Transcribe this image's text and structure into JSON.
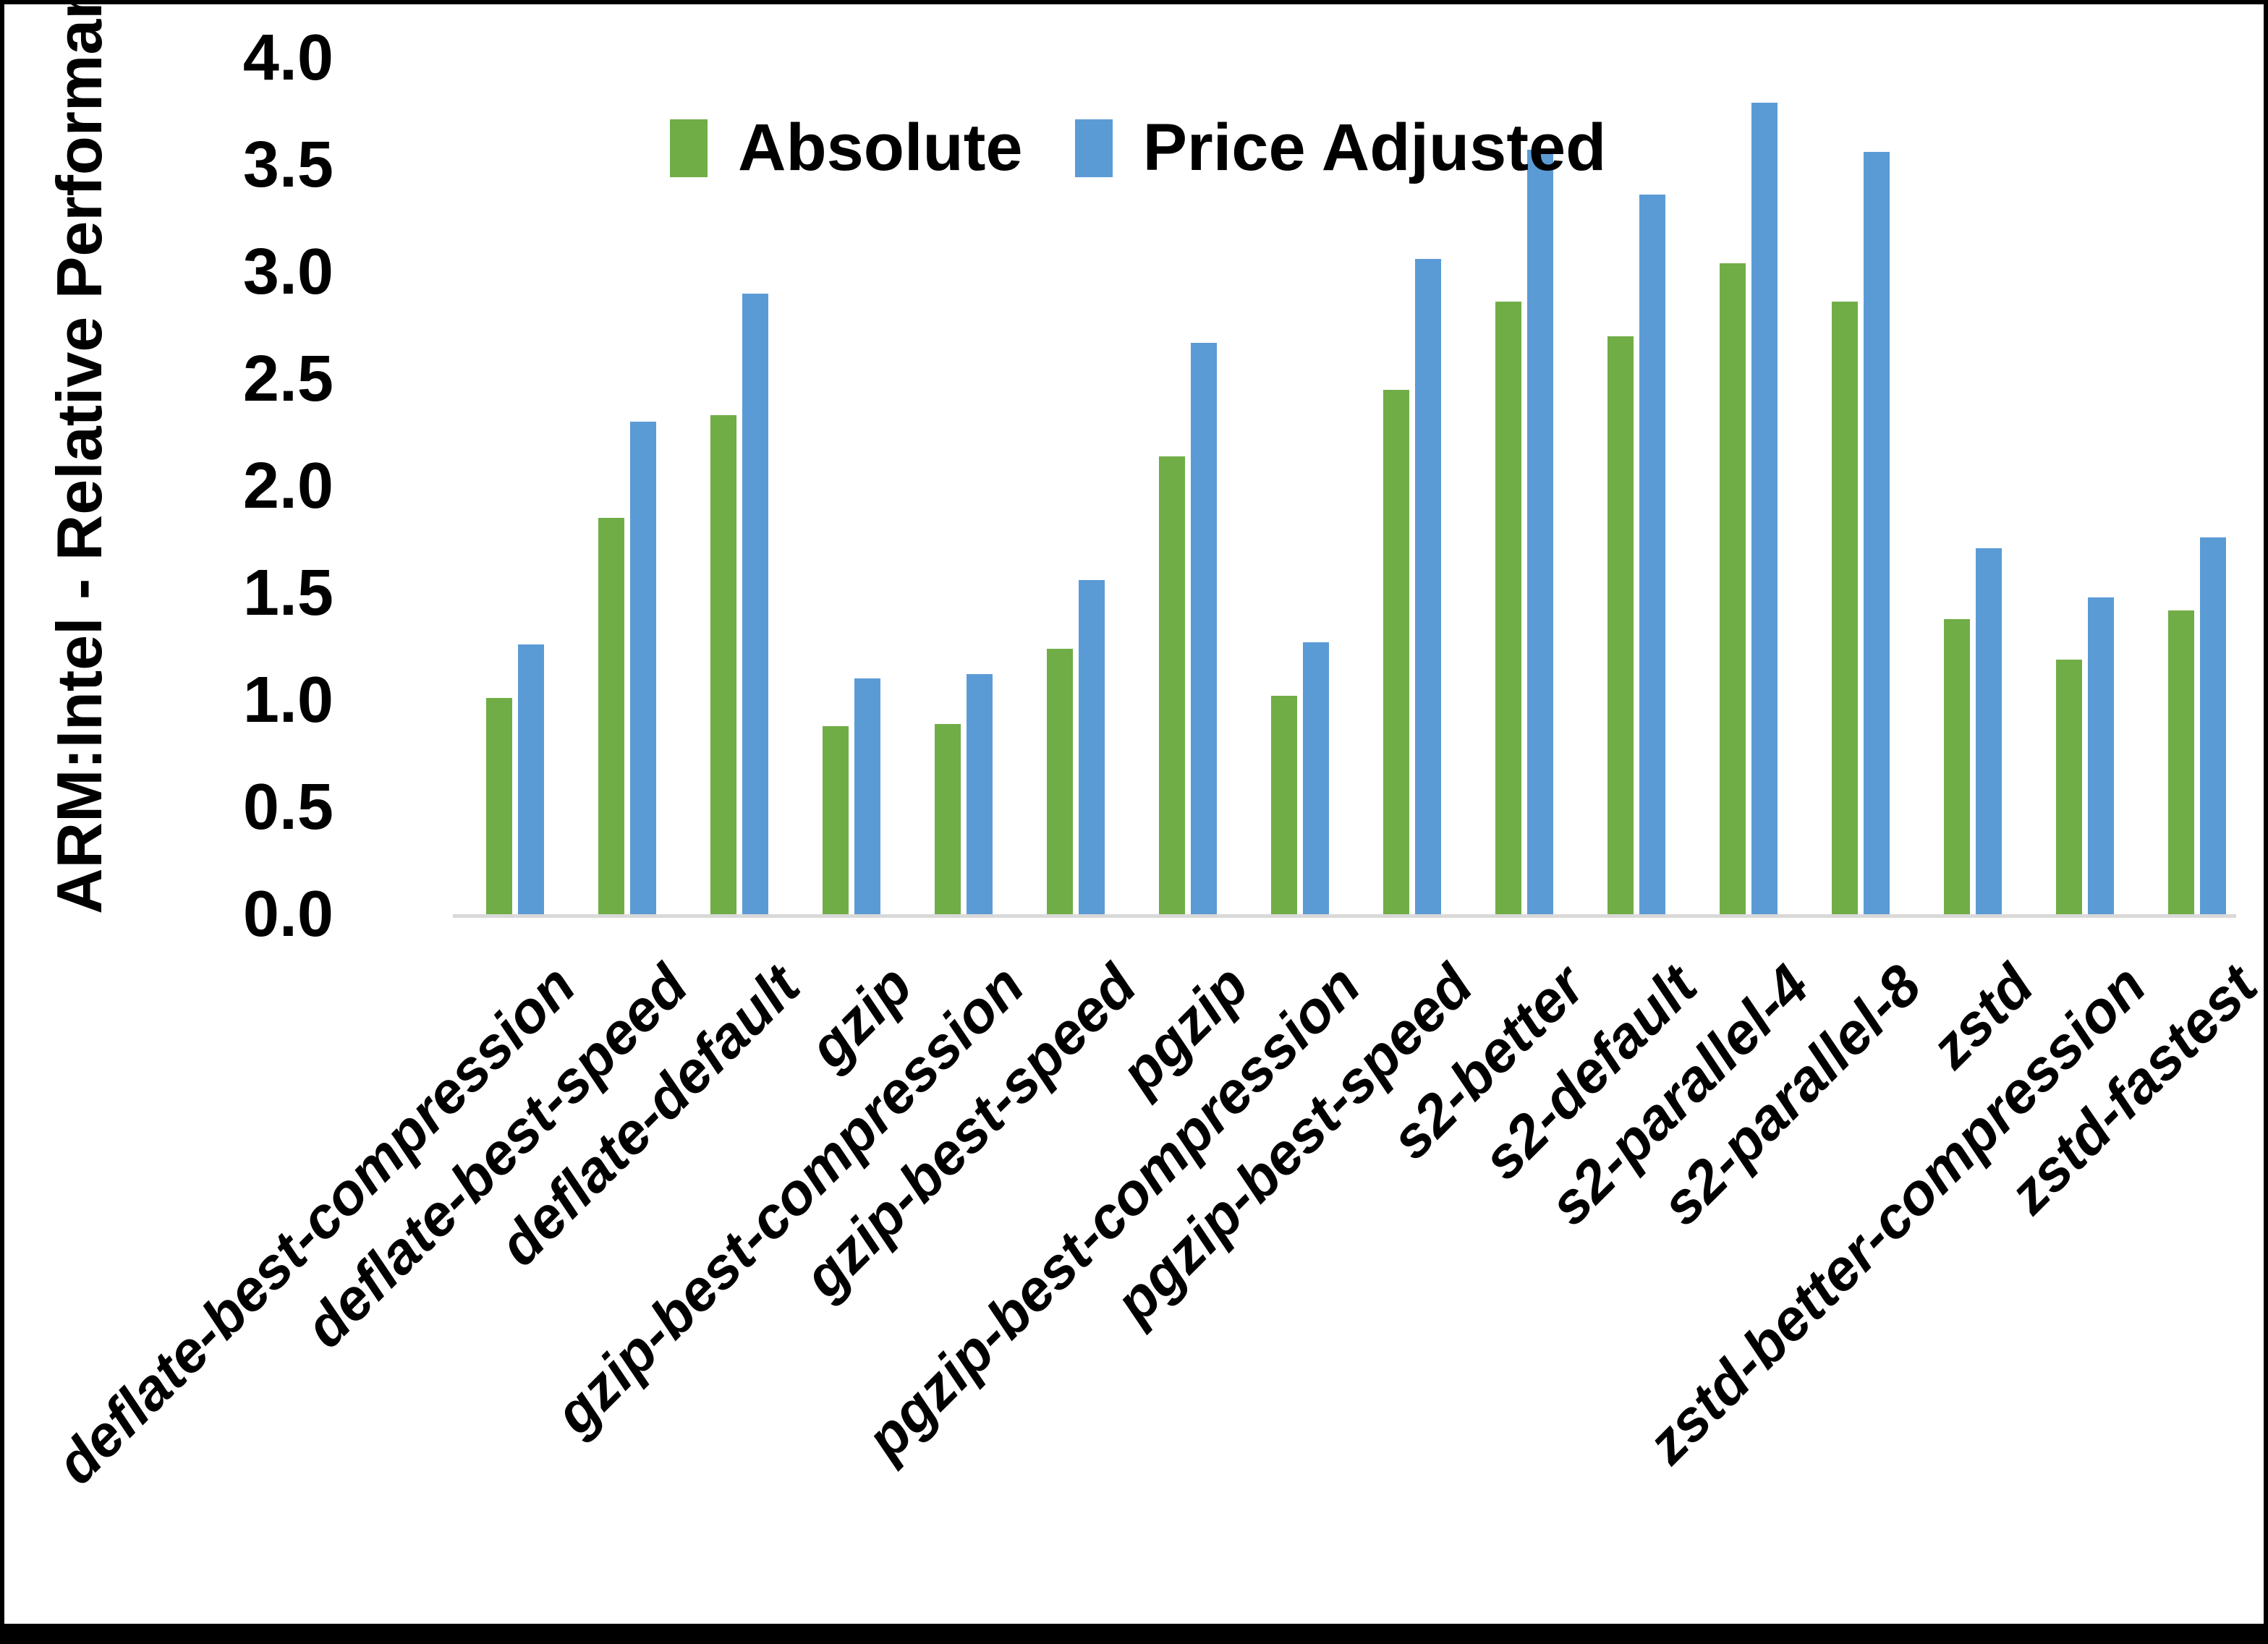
{
  "chart_data": {
    "type": "bar",
    "title": "",
    "xlabel": "",
    "ylabel": "ARM:Intel - Relative Performance",
    "ylim": [
      0.0,
      4.0
    ],
    "ytick_step": 0.5,
    "ytick_labels": [
      "0.0",
      "0.5",
      "1.0",
      "1.5",
      "2.0",
      "2.5",
      "3.0",
      "3.5",
      "4.0"
    ],
    "grid": false,
    "legend_position": "top",
    "categories": [
      "deflate-best-compression",
      "deflate-best-speed",
      "deflate-default",
      "gzip",
      "gzip-best-compression",
      "gzip-best-speed",
      "pgzip",
      "pgzip-best-compression",
      "pgzip-best-speed",
      "s2-better",
      "s2-default",
      "s2-parallel-4",
      "s2-parallel-8",
      "zstd",
      "zstd-better-compression",
      "zstd-fastest"
    ],
    "series": [
      {
        "name": "Absolute",
        "color": "#70AD47",
        "values": [
          1.01,
          1.85,
          2.33,
          0.88,
          0.89,
          1.24,
          2.14,
          1.02,
          2.45,
          2.86,
          2.7,
          3.04,
          2.86,
          1.38,
          1.19,
          1.42
        ]
      },
      {
        "name": "Price Adjusted",
        "color": "#5B9BD5",
        "values": [
          1.26,
          2.3,
          2.9,
          1.1,
          1.12,
          1.56,
          2.67,
          1.27,
          3.06,
          3.57,
          3.36,
          3.79,
          3.56,
          1.71,
          1.48,
          1.76
        ]
      }
    ],
    "axis_line_color": "#D9D9D9"
  }
}
